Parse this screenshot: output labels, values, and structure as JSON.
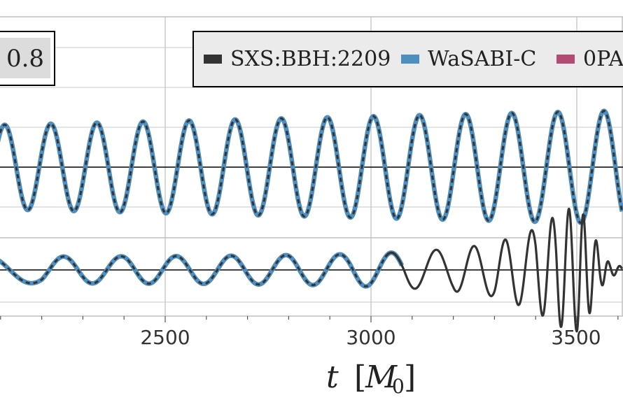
{
  "chart_data": {
    "type": "line",
    "panel_label": "0.8",
    "x": {
      "label_var": "t",
      "label_unit_open": "[",
      "label_unit_sym": "M",
      "label_unit_sub": "0",
      "label_unit_close": "]",
      "ticks": [
        2500,
        3000,
        3500
      ],
      "xlim": [
        2070,
        3610
      ]
    },
    "legend": {
      "entries": [
        {
          "name": "SXS:BBH:2209",
          "color": "#333333"
        },
        {
          "name": "WaSABI-C",
          "color": "#4f8fc0"
        },
        {
          "name": "0PA",
          "color": "#b24c74"
        }
      ]
    },
    "top_panel": {
      "carrier_period": 112,
      "amplitude_start": 1.0,
      "amplitude_end": 1.35,
      "series": [
        "SXS:BBH:2209",
        "WaSABI-C"
      ]
    },
    "bottom_panel": {
      "sxs": {
        "phase": [
          [
            2070,
            0
          ],
          [
            2200,
            0.62
          ],
          [
            2400,
            2.05
          ],
          [
            2600,
            3.55
          ],
          [
            2800,
            5.05
          ],
          [
            2950,
            6.2
          ],
          [
            3080,
            7.25
          ],
          [
            3200,
            8.4
          ],
          [
            3300,
            9.6
          ],
          [
            3400,
            11.15
          ],
          [
            3450,
            12.2
          ],
          [
            3500,
            13.5
          ],
          [
            3530,
            14.45
          ],
          [
            3560,
            15.4
          ],
          [
            3610,
            17.2
          ]
        ],
        "amplitude": [
          [
            2070,
            0.2
          ],
          [
            2200,
            0.2
          ],
          [
            2600,
            0.21
          ],
          [
            2900,
            0.23
          ],
          [
            3050,
            0.26
          ],
          [
            3200,
            0.32
          ],
          [
            3300,
            0.4
          ],
          [
            3400,
            0.62
          ],
          [
            3450,
            0.82
          ],
          [
            3490,
            0.95
          ],
          [
            3510,
            0.9
          ],
          [
            3540,
            0.55
          ],
          [
            3560,
            0.25
          ],
          [
            3580,
            0.1
          ],
          [
            3610,
            0.05
          ]
        ]
      },
      "wasabi_end_x": 3075
    },
    "colors": {
      "grid": "#bfbfbf",
      "zero_line": "#000000",
      "sxs": "#333333",
      "wasabi": "#4f8fc0",
      "zeropa": "#b24c74",
      "legend_bg": "#ebebeb",
      "label_bg": "#dcdcdc"
    }
  }
}
